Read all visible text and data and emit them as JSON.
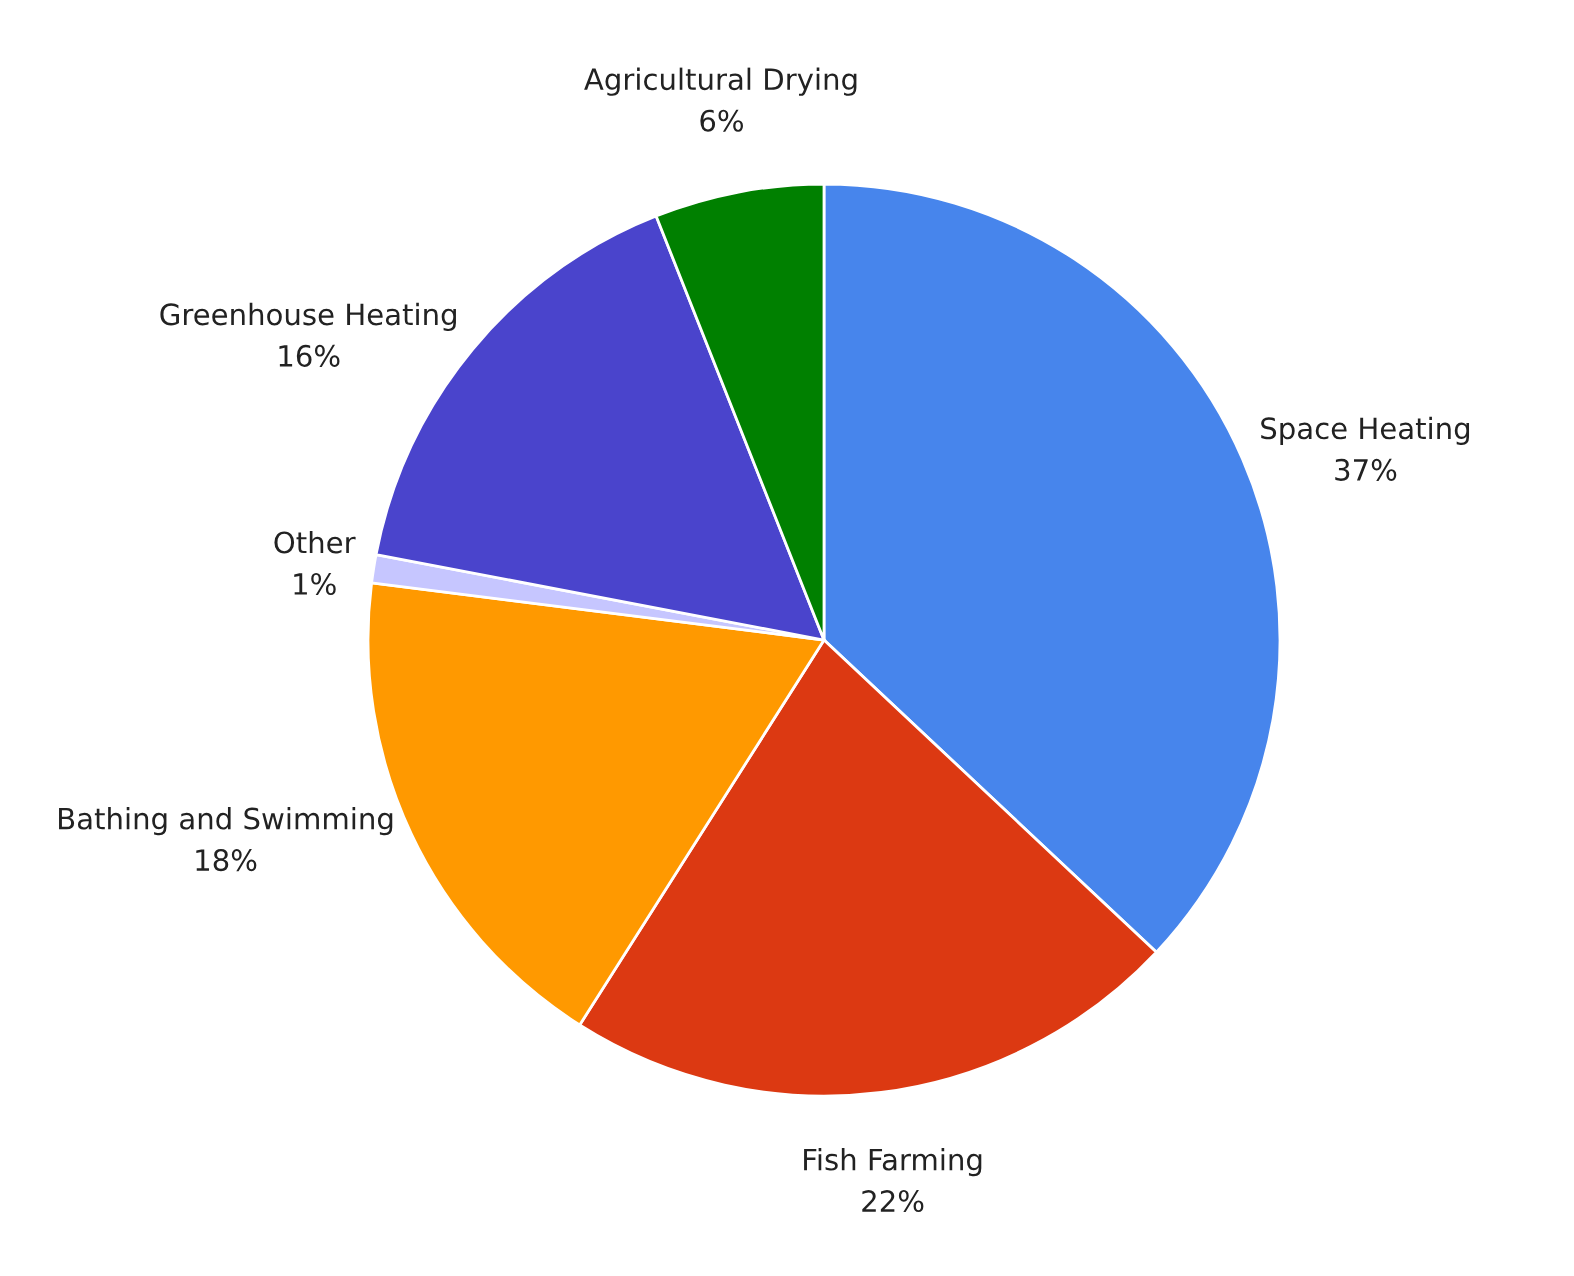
{
  "chart_data": {
    "type": "pie",
    "categories": [
      "Space Heating",
      "Fish Farming",
      "Bathing and Swimming",
      "Other",
      "Greenhouse Heating",
      "Agricultural Drying"
    ],
    "values": [
      37,
      22,
      18,
      1,
      16,
      6
    ],
    "value_labels": [
      "37%",
      "22%",
      "18%",
      "1%",
      "16%",
      "6%"
    ],
    "colors": [
      "#4785ec",
      "#dc3912",
      "#ff9900",
      "#c6c6ff",
      "#4a44cc",
      "#008000"
    ],
    "legend": false
  }
}
